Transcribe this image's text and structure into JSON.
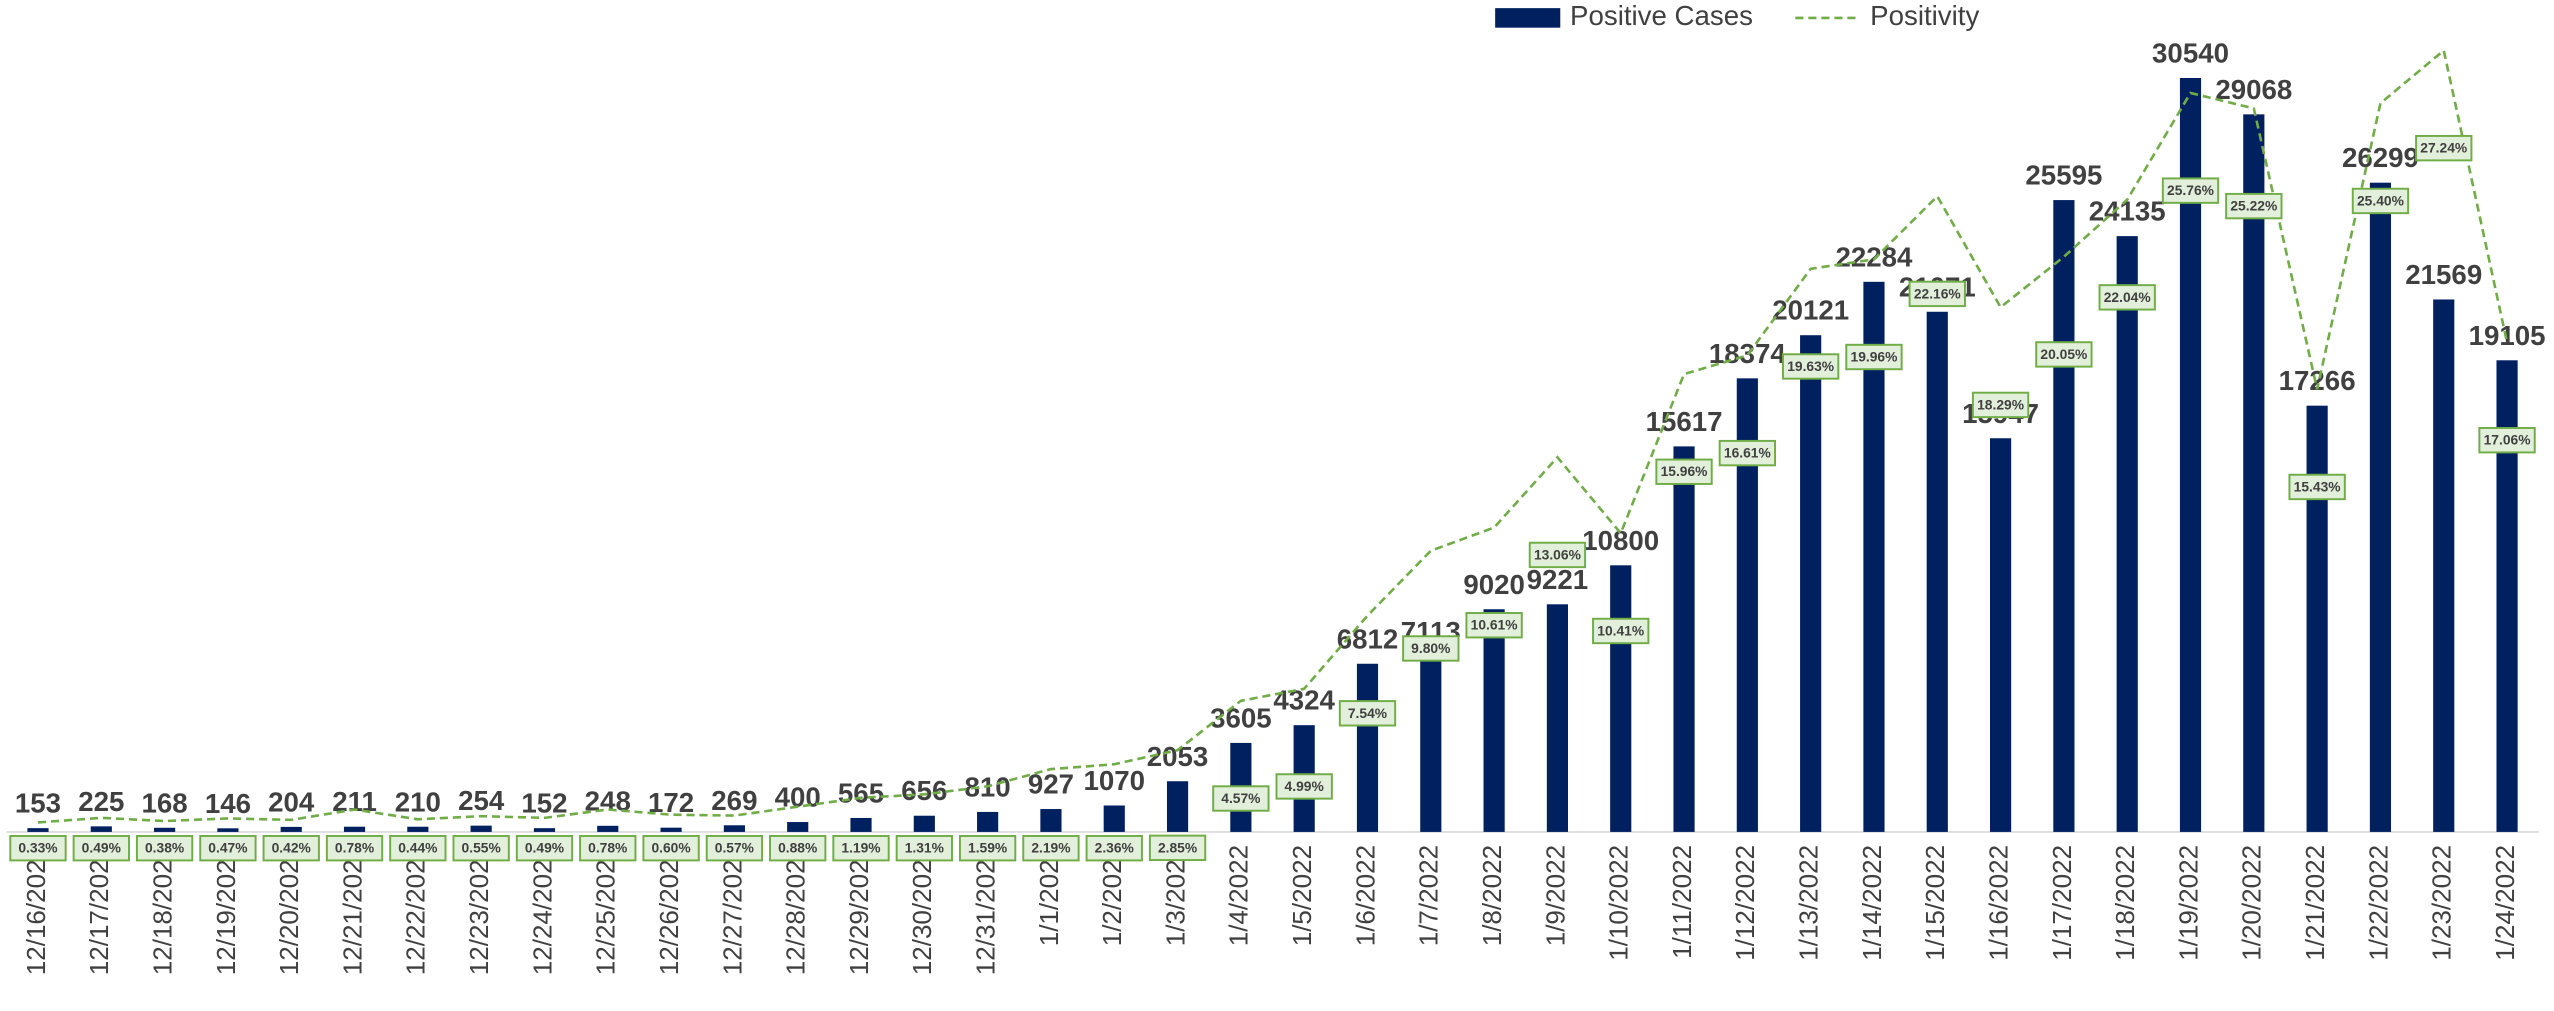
{
  "chart_data": {
    "type": "bar-line",
    "legend": "top",
    "categories": [
      "12/16/2021",
      "12/17/2021",
      "12/18/2021",
      "12/19/2021",
      "12/20/2021",
      "12/21/2021",
      "12/22/2021",
      "12/23/2021",
      "12/24/2021",
      "12/25/2021",
      "12/26/2021",
      "12/27/2021",
      "12/28/2021",
      "12/29/2021",
      "12/30/2021",
      "12/31/2021",
      "1/1/2022",
      "1/2/2022",
      "1/3/2022",
      "1/4/2022",
      "1/5/2022",
      "1/6/2022",
      "1/7/2022",
      "1/8/2022",
      "1/9/2022",
      "1/10/2022",
      "1/11/2022",
      "1/12/2022",
      "1/13/2022",
      "1/14/2022",
      "1/15/2022",
      "1/16/2022",
      "1/17/2022",
      "1/18/2022",
      "1/19/2022",
      "1/20/2022",
      "1/21/2022",
      "1/22/2022",
      "1/23/2022",
      "1/24/2022"
    ],
    "ylim": [
      0,
      33700
    ],
    "y2lim": [
      0,
      29
    ],
    "series": [
      {
        "name": "Positive Cases",
        "type": "bar",
        "color": "#002060",
        "values": [
          153,
          225,
          168,
          146,
          204,
          211,
          210,
          254,
          152,
          248,
          172,
          269,
          400,
          565,
          656,
          810,
          927,
          1070,
          2053,
          3605,
          4324,
          6812,
          7113,
          9020,
          9221,
          10800,
          15617,
          18374,
          20121,
          22284,
          21071,
          15947,
          25595,
          24135,
          30540,
          29068,
          17266,
          26299,
          21569,
          19105
        ]
      },
      {
        "name": "Positivity",
        "type": "line",
        "axis": "y2",
        "color": "#70ad47",
        "dashed": true,
        "values": [
          0.33,
          0.49,
          0.38,
          0.47,
          0.42,
          0.78,
          0.44,
          0.55,
          0.49,
          0.78,
          0.6,
          0.57,
          0.88,
          1.19,
          1.31,
          1.59,
          2.19,
          2.36,
          2.85,
          4.57,
          4.99,
          7.54,
          9.8,
          10.61,
          13.06,
          10.41,
          15.96,
          16.61,
          19.63,
          19.96,
          22.16,
          18.29,
          20.05,
          22.04,
          25.76,
          25.22,
          15.43,
          25.4,
          27.24,
          17.06
        ],
        "value_labels": [
          "0.33%",
          "0.49%",
          "0.38%",
          "0.47%",
          "0.42%",
          "0.78%",
          "0.44%",
          "0.55%",
          "0.49%",
          "0.78%",
          "0.60%",
          "0.57%",
          "0.88%",
          "1.19%",
          "1.31%",
          "1.59%",
          "2.19%",
          "2.36%",
          "2.85%",
          "4.57%",
          "4.99%",
          "7.54%",
          "9.80%",
          "10.61%",
          "13.06%",
          "10.41%",
          "15.96%",
          "16.61%",
          "19.63%",
          "19.96%",
          "22.16%",
          "18.29%",
          "20.05%",
          "22.04%",
          "25.76%",
          "25.22%",
          "15.43%",
          "25.40%",
          "27.24%",
          "17.06%"
        ]
      }
    ]
  }
}
